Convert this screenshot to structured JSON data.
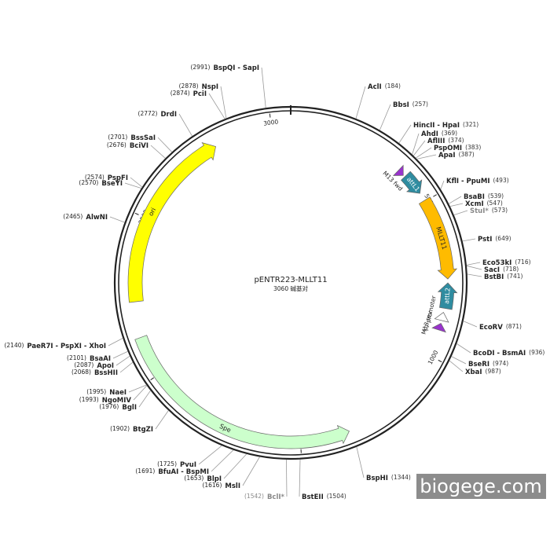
{
  "plasmid": {
    "name": "pENTR223-MLLT11",
    "size_label": "3060 碱基对",
    "length": 3060,
    "scale_ticks": [
      500,
      1000,
      1500,
      2000,
      2500,
      3000
    ],
    "features": [
      {
        "name": "ori",
        "start": 2236,
        "end": 2815,
        "direction": "cw",
        "color": "#ffff00"
      },
      {
        "name": "Spe",
        "start": 1347,
        "end": 2125,
        "direction": "ccw",
        "color": "#ccffcc"
      },
      {
        "name": "MLLT11",
        "start": 496,
        "end": 753,
        "direction": "cw",
        "color": "#ffbb00"
      },
      {
        "name": "attL1",
        "start": 400,
        "end": 470,
        "direction": "cw",
        "color": "#2f8ca0"
      },
      {
        "name": "attL2",
        "start": 765,
        "end": 845,
        "direction": "ccw",
        "color": "#2f8ca0"
      },
      {
        "name": "T7 promoter",
        "start": 858,
        "end": 884,
        "direction": "ccw",
        "color": "#ffffff"
      },
      {
        "name": "M13 fwd",
        "start": 372,
        "end": 394,
        "direction": "cw",
        "color": "#9933cc"
      },
      {
        "name": "M13 rev",
        "start": 893,
        "end": 915,
        "direction": "ccw",
        "color": "#9933cc"
      }
    ],
    "enzymes": [
      {
        "name": "AclI",
        "position": 184,
        "position_label": "(184)"
      },
      {
        "name": "BbsI",
        "position": 257,
        "position_label": "(257)"
      },
      {
        "name": "HincII - HpaI",
        "position": 321,
        "position_label": "(321)"
      },
      {
        "name": "AhdI",
        "position": 369,
        "position_label": "(369)"
      },
      {
        "name": "AflIII",
        "position": 374,
        "position_label": "(374)"
      },
      {
        "name": "PspOMI",
        "position": 383,
        "position_label": "(383)"
      },
      {
        "name": "ApaI",
        "position": 387,
        "position_label": "(387)"
      },
      {
        "name": "KflI - PpuMI",
        "position": 493,
        "position_label": "(493)"
      },
      {
        "name": "BsaBI",
        "position": 539,
        "position_label": "(539)"
      },
      {
        "name": "XcmI",
        "position": 547,
        "position_label": "(547)"
      },
      {
        "name": "StuI*",
        "position": 573,
        "position_label": "(573)",
        "color": "#888888"
      },
      {
        "name": "PstI",
        "position": 649,
        "position_label": "(649)"
      },
      {
        "name": "Eco53kI",
        "position": 716,
        "position_label": "(716)"
      },
      {
        "name": "SacI",
        "position": 718,
        "position_label": "(718)"
      },
      {
        "name": "BstBI",
        "position": 741,
        "position_label": "(741)"
      },
      {
        "name": "EcoRV",
        "position": 871,
        "position_label": "(871)"
      },
      {
        "name": "BcoDI - BsmAI",
        "position": 936,
        "position_label": "(936)"
      },
      {
        "name": "BseRI",
        "position": 974,
        "position_label": "(974)"
      },
      {
        "name": "XbaI",
        "position": 987,
        "position_label": "(987)"
      },
      {
        "name": "BspHI",
        "position": 1344,
        "position_label": "(1344)"
      },
      {
        "name": "BstEII",
        "position": 1504,
        "position_label": "(1504)"
      },
      {
        "name": "BclI*",
        "position": 1542,
        "position_label": "(1542)",
        "color": "#888888"
      },
      {
        "name": "MslI",
        "position": 1616,
        "position_label": "(1616)"
      },
      {
        "name": "BlpI",
        "position": 1653,
        "position_label": "(1653)"
      },
      {
        "name": "BfuAI - BspMI",
        "position": 1691,
        "position_label": "(1691)"
      },
      {
        "name": "PvuI",
        "position": 1725,
        "position_label": "(1725)"
      },
      {
        "name": "BtgZI",
        "position": 1902,
        "position_label": "(1902)"
      },
      {
        "name": "BglI",
        "position": 1976,
        "position_label": "(1976)"
      },
      {
        "name": "NgoMIV",
        "position": 1993,
        "position_label": "(1993)"
      },
      {
        "name": "NaeI",
        "position": 1995,
        "position_label": "(1995)"
      },
      {
        "name": "BssHII",
        "position": 2068,
        "position_label": "(2068)"
      },
      {
        "name": "ApoI",
        "position": 2087,
        "position_label": "(2087)"
      },
      {
        "name": "BsaAI",
        "position": 2101,
        "position_label": "(2101)"
      },
      {
        "name": "PaeR7I - PspXI - XhoI",
        "position": 2140,
        "position_label": "(2140)"
      },
      {
        "name": "AlwNI",
        "position": 2465,
        "position_label": "(2465)"
      },
      {
        "name": "BseYI",
        "position": 2570,
        "position_label": "(2570)"
      },
      {
        "name": "PspFI",
        "position": 2574,
        "position_label": "(2574)"
      },
      {
        "name": "BciVI",
        "position": 2676,
        "position_label": "(2676)"
      },
      {
        "name": "BssSaI",
        "position": 2701,
        "position_label": "(2701)"
      },
      {
        "name": "DrdI",
        "position": 2772,
        "position_label": "(2772)"
      },
      {
        "name": "PciI",
        "position": 2874,
        "position_label": "(2874)"
      },
      {
        "name": "NspI",
        "position": 2878,
        "position_label": "(2878)"
      },
      {
        "name": "BspQI - SapI",
        "position": 2991,
        "position_label": "(2991)"
      }
    ]
  },
  "watermark": "biogege.com"
}
